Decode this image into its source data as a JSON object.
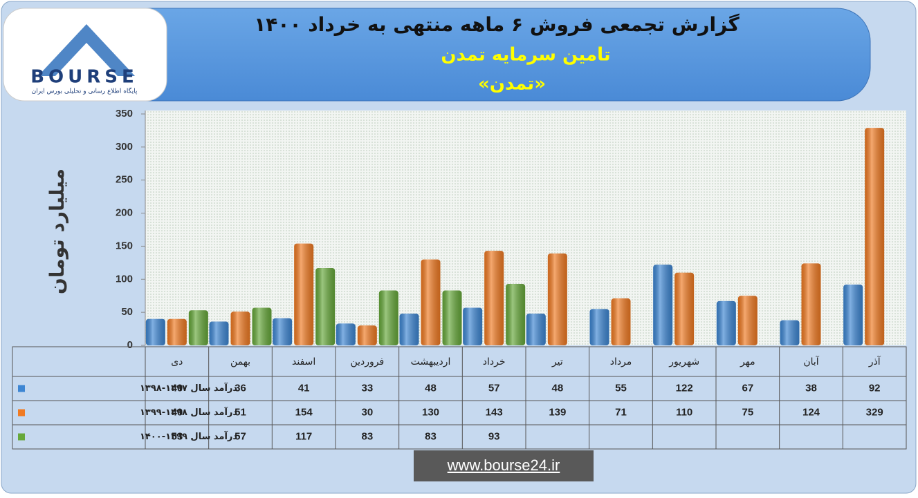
{
  "logo": {
    "text": "BOURSE",
    "tagline": "پایگاه اطلاع رسانی و تحلیلی بورس ایران"
  },
  "footer": "www.bourse24.ir",
  "chart_data": {
    "type": "bar",
    "title": "گزارش تجمعی فروش ۶ ماهه منتهی به خرداد ۱۴۰۰",
    "subtitle": "تامین سرمایه تمدن",
    "symbol": "«تمدن»",
    "y_label": "میلیارد تومان",
    "categories": [
      "دی",
      "بهمن",
      "اسفند",
      "فروردین",
      "اردیبهشت",
      "خرداد",
      "تیر",
      "مرداد",
      "شهریور",
      "مهر",
      "آبان",
      "آذر"
    ],
    "series": [
      {
        "name": "درآمد سال ۱۳۹۷-۱۳۹۸",
        "color": "#3d86d3",
        "values": [
          40,
          36,
          41,
          33,
          48,
          57,
          48,
          55,
          122,
          67,
          38,
          92
        ]
      },
      {
        "name": "درآمد سال ۱۳۹۸-۱۳۹۹",
        "color": "#f07a22",
        "values": [
          40,
          51,
          154,
          30,
          130,
          143,
          139,
          71,
          110,
          75,
          124,
          329
        ]
      },
      {
        "name": "درآمد سال ۱۳۹۹-۱۴۰۰",
        "color": "#66a83a",
        "values": [
          53,
          57,
          117,
          83,
          83,
          93,
          null,
          null,
          null,
          null,
          null,
          null
        ]
      }
    ],
    "ylim": [
      0,
      350
    ],
    "yticks": [
      0,
      50,
      100,
      150,
      200,
      250,
      300,
      350
    ]
  }
}
